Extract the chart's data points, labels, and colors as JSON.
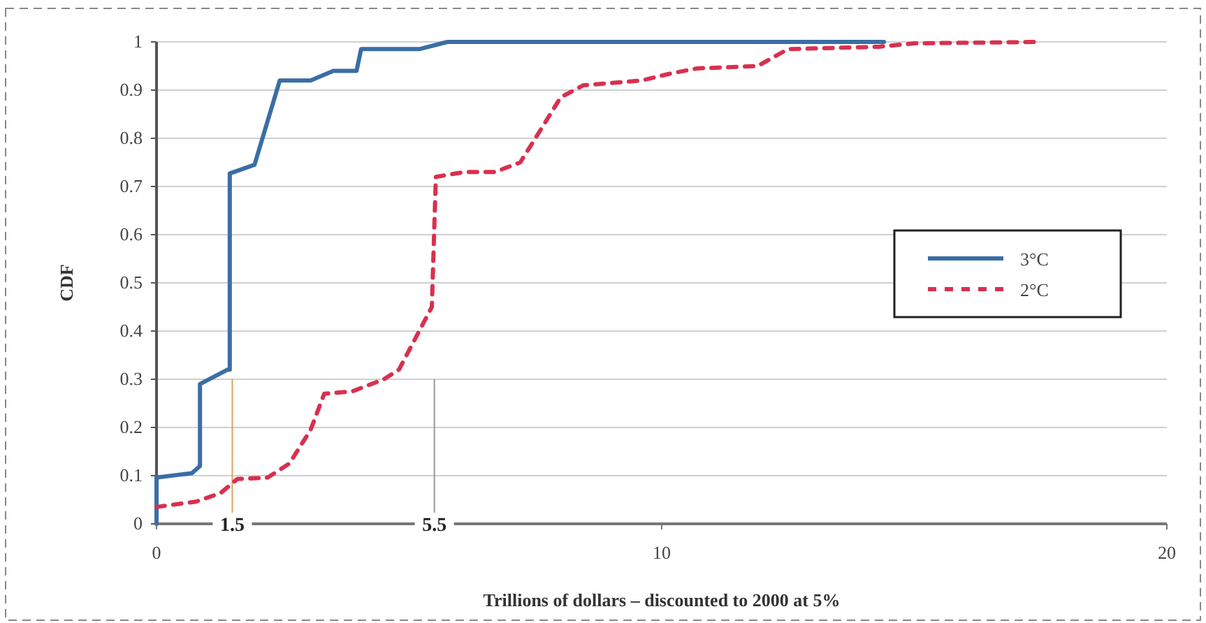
{
  "chart_data": {
    "type": "line",
    "xlabel": "Trillions of dollars – discounted to 2000 at 5%",
    "ylabel": "CDF",
    "xlim": [
      0,
      20
    ],
    "xticks": [
      0,
      10,
      20
    ],
    "ylim": [
      0,
      1
    ],
    "yticks": [
      0,
      0.1,
      0.2,
      0.3,
      0.4,
      0.5,
      0.6,
      0.7,
      0.8,
      0.9,
      1
    ],
    "grid": "y",
    "legend": "right",
    "marker": "none",
    "series": [
      {
        "name": "3°C",
        "color": "#3a6ea5",
        "line_style": "solid",
        "x": [
          0,
          0,
          0.7,
          0.86,
          0.86,
          1.41,
          1.45,
          1.45,
          1.94,
          2.44,
          3.05,
          3.5,
          3.96,
          4.05,
          5.2,
          5.76,
          14.4
        ],
        "values": [
          0,
          0.096,
          0.105,
          0.12,
          0.29,
          0.32,
          0.32,
          0.727,
          0.745,
          0.92,
          0.92,
          0.94,
          0.94,
          0.985,
          0.985,
          1,
          1
        ]
      },
      {
        "name": "2°C",
        "color": "#d9304f",
        "line_style": "dashed",
        "x": [
          0,
          0.78,
          1.27,
          1.6,
          2.2,
          2.63,
          3.05,
          3.32,
          3.88,
          4.5,
          4.8,
          5.45,
          5.53,
          6.1,
          6.7,
          7.2,
          7.5,
          8.0,
          8.45,
          9.6,
          10.2,
          10.7,
          11.9,
          12.5,
          14.3,
          15,
          17.5
        ],
        "values": [
          0.035,
          0.046,
          0.064,
          0.093,
          0.096,
          0.125,
          0.195,
          0.27,
          0.275,
          0.3,
          0.32,
          0.45,
          0.72,
          0.73,
          0.73,
          0.75,
          0.8,
          0.885,
          0.91,
          0.92,
          0.935,
          0.945,
          0.95,
          0.985,
          0.99,
          0.997,
          1
        ]
      }
    ],
    "ref_lines": [
      {
        "axis": "x",
        "value": 1.5,
        "label": "1.5",
        "color": "#e0a060"
      },
      {
        "axis": "x",
        "value": 5.5,
        "label": "5.5",
        "color": "#999999"
      }
    ]
  }
}
